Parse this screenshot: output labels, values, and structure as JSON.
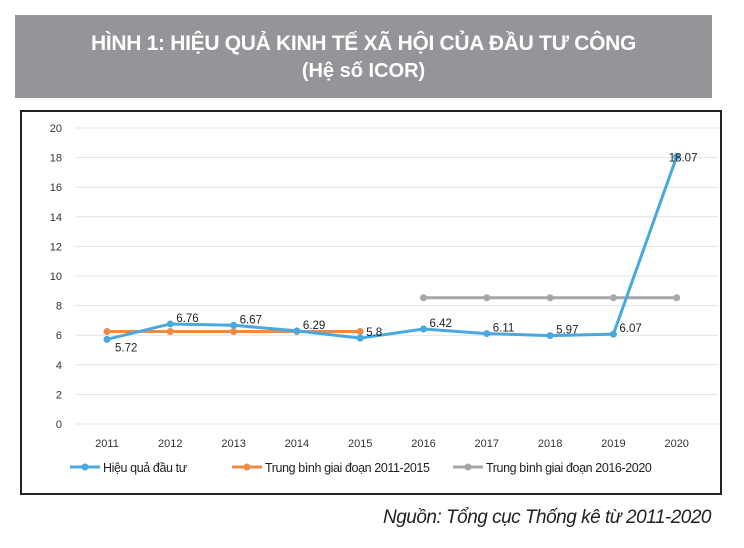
{
  "title": "HÌNH 1: HIỆU QUẢ KINH TẾ XÃ HỘI CỦA ĐẦU TƯ CÔNG",
  "subtitle": "(Hệ số ICOR)",
  "source": "Nguồn: Tổng cục Thống kê từ 2011-2020",
  "chart_data": {
    "type": "line",
    "categories": [
      "2011",
      "2012",
      "2013",
      "2014",
      "2015",
      "2016",
      "2017",
      "2018",
      "2019",
      "2020"
    ],
    "ylim": [
      0,
      20
    ],
    "yticks": [
      "0",
      "2",
      "4",
      "6",
      "8",
      "10",
      "12",
      "14",
      "16",
      "18",
      "20"
    ],
    "grid": true,
    "legend_position": "bottom",
    "series": [
      {
        "name": "Hiệu quả đầu tư",
        "color": "#4aa8e0",
        "values": [
          5.72,
          6.76,
          6.67,
          6.29,
          5.8,
          6.42,
          6.11,
          5.97,
          6.07,
          18.07
        ],
        "labels": [
          "5.72",
          "6.76",
          "6.67",
          "6.29",
          "5.8",
          "6.42",
          "6.11",
          "5.97",
          "6.07",
          "18.07"
        ]
      },
      {
        "name": "Trung bình giai đoạn 2011-2015",
        "color": "#ef8a45",
        "values": [
          6.25,
          6.25,
          6.25,
          6.25,
          6.25,
          null,
          null,
          null,
          null,
          null
        ]
      },
      {
        "name": "Trung bình giai đoạn 2016-2020",
        "color": "#a5a7aa",
        "values": [
          null,
          null,
          null,
          null,
          null,
          8.53,
          8.53,
          8.53,
          8.53,
          8.53
        ]
      }
    ]
  }
}
